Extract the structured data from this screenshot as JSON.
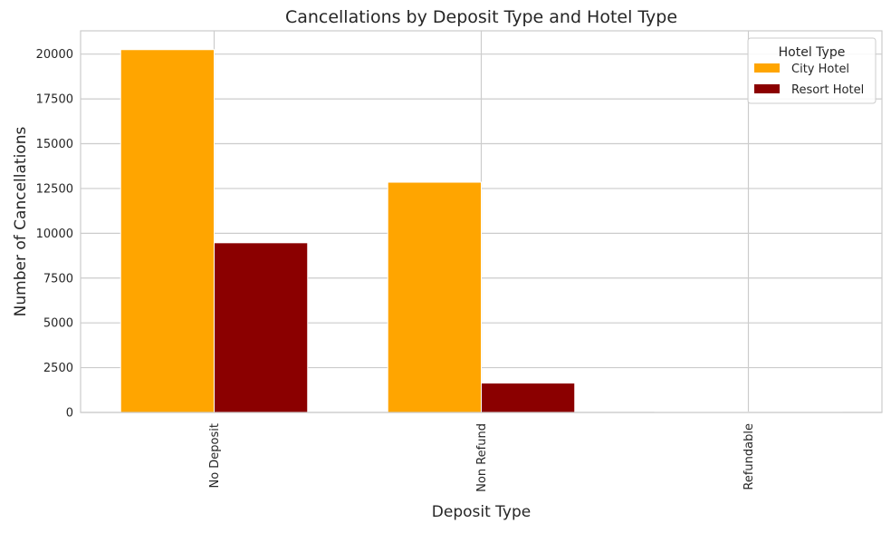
{
  "chart_data": {
    "type": "bar",
    "title": "Cancellations by Deposit Type and Hotel Type",
    "xlabel": "Deposit Type",
    "ylabel": "Number of Cancellations",
    "categories": [
      "No Deposit",
      "Non Refund",
      "Refundable"
    ],
    "series": [
      {
        "name": "City Hotel",
        "values": [
          20250,
          12850,
          20
        ],
        "color": "#FFA500"
      },
      {
        "name": "Resort Hotel",
        "values": [
          9470,
          1640,
          10
        ],
        "color": "#8B0000"
      }
    ],
    "ylim": [
      0,
      21300
    ],
    "yticks": [
      0,
      2500,
      5000,
      7500,
      10000,
      12500,
      15000,
      17500,
      20000
    ],
    "ytick_labels": [
      "0",
      "2500",
      "5000",
      "7500",
      "10000",
      "12500",
      "15000",
      "17500",
      "20000"
    ],
    "grid": true,
    "legend": {
      "title": "Hotel Type",
      "placement": "top-right"
    }
  }
}
